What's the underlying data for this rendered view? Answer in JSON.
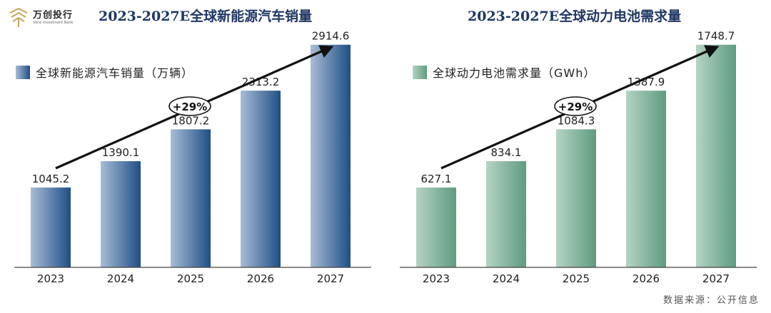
{
  "header": {
    "logo_name": "万创投行",
    "logo_sub": "Vone Investment Bank"
  },
  "chart_data": [
    {
      "type": "bar",
      "title": "2023-2027E全球新能源汽车销量",
      "legend": "全球新能源汽车销量（万辆）",
      "categories": [
        "2023",
        "2024",
        "2025",
        "2026",
        "2027"
      ],
      "series": [
        {
          "name": "全球新能源汽车销量（万辆）",
          "values": [
            1045.2,
            1390.1,
            1807.2,
            2313.2,
            2914.6
          ]
        }
      ],
      "value_labels": [
        "1045.2",
        "1390.1",
        "1807.2",
        "2313.2",
        "2914.6"
      ],
      "cagr_label": "+29%",
      "ylim": [
        0,
        3500
      ],
      "color_light": "#a8bdd6",
      "color_dark": "#1f4e85"
    },
    {
      "type": "bar",
      "title": "2023-2027E全球动力电池需求量",
      "legend": "全球动力电池需求量（GWh）",
      "categories": [
        "2023",
        "2024",
        "2025",
        "2026",
        "2027"
      ],
      "series": [
        {
          "name": "全球动力电池需求量（GWh）",
          "values": [
            627.1,
            834.1,
            1084.3,
            1387.9,
            1748.7
          ]
        }
      ],
      "value_labels": [
        "627.1",
        "834.1",
        "1084.3",
        "1387.9",
        "1748.7"
      ],
      "cagr_label": "+29%",
      "ylim": [
        0,
        2100
      ],
      "color_light": "#b5d3c3",
      "color_dark": "#5e9c80"
    }
  ],
  "footer": {
    "source": "数据来源：公开信息"
  }
}
